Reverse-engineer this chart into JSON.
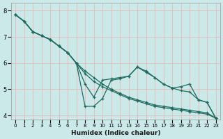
{
  "title": "",
  "xlabel": "Humidex (Indice chaleur)",
  "ylabel": "",
  "xlim": [
    -0.5,
    23.5
  ],
  "ylim": [
    3.85,
    8.3
  ],
  "yticks": [
    4,
    5,
    6,
    7,
    8
  ],
  "xticks": [
    0,
    1,
    2,
    3,
    4,
    5,
    6,
    7,
    8,
    9,
    10,
    11,
    12,
    13,
    14,
    15,
    16,
    17,
    18,
    19,
    20,
    21,
    22,
    23
  ],
  "bg_color": "#cce9e9",
  "line_color": "#1e6b5e",
  "grid_color": "#e8b8b8",
  "lines": [
    {
      "x": [
        0,
        1,
        2,
        3,
        4,
        5,
        6,
        7,
        8,
        9,
        10,
        11,
        12,
        13,
        14,
        15,
        16,
        17,
        18,
        19,
        20,
        21,
        22,
        23
      ],
      "y": [
        7.85,
        7.6,
        7.2,
        7.05,
        6.9,
        6.65,
        6.4,
        6.0,
        5.7,
        5.45,
        5.2,
        5.0,
        4.85,
        4.7,
        4.6,
        4.5,
        4.4,
        4.35,
        4.3,
        4.25,
        4.2,
        4.15,
        4.1,
        3.9
      ]
    },
    {
      "x": [
        0,
        1,
        2,
        3,
        4,
        5,
        6,
        7,
        8,
        9,
        10,
        11,
        12,
        13,
        14,
        15,
        16,
        17,
        18,
        19,
        20,
        21,
        22,
        23
      ],
      "y": [
        7.85,
        7.6,
        7.2,
        7.05,
        6.9,
        6.65,
        6.4,
        6.0,
        5.6,
        5.3,
        5.1,
        4.95,
        4.8,
        4.65,
        4.55,
        4.45,
        4.35,
        4.3,
        4.25,
        4.2,
        4.15,
        4.1,
        4.05,
        3.9
      ]
    },
    {
      "x": [
        0,
        1,
        2,
        3,
        4,
        5,
        6,
        7,
        8,
        9,
        10,
        11,
        12,
        13,
        14,
        15,
        16,
        17,
        18,
        19,
        20,
        21,
        22,
        23
      ],
      "y": [
        7.85,
        7.6,
        7.2,
        7.05,
        6.9,
        6.65,
        6.4,
        6.0,
        5.2,
        4.7,
        5.35,
        5.4,
        5.45,
        5.5,
        5.85,
        5.7,
        5.45,
        5.2,
        5.05,
        4.95,
        4.9,
        4.6,
        4.5,
        3.9
      ]
    },
    {
      "x": [
        0,
        1,
        2,
        3,
        4,
        5,
        6,
        7,
        8,
        9,
        10,
        11,
        12,
        13,
        14,
        15,
        16,
        17,
        18,
        19,
        20,
        21,
        22,
        23
      ],
      "y": [
        7.85,
        7.6,
        7.2,
        7.05,
        6.9,
        6.65,
        6.4,
        6.0,
        4.35,
        4.35,
        4.65,
        5.35,
        5.4,
        5.5,
        5.85,
        5.65,
        5.45,
        5.2,
        5.05,
        5.1,
        5.2,
        4.6,
        4.5,
        3.9
      ]
    }
  ]
}
